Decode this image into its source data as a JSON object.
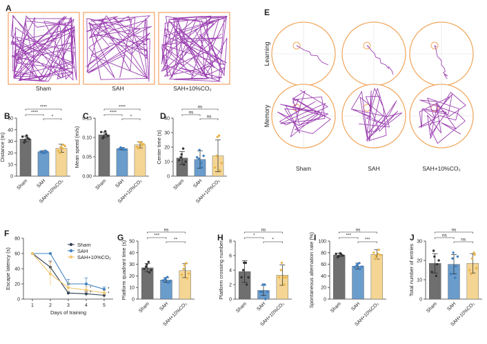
{
  "colors": {
    "sham": "#6f6f6f",
    "sah": "#6a9ccc",
    "co2": "#f4d594",
    "track": "#9a3fb0",
    "pool": "#f0a860",
    "box": "#f2a060",
    "axis": "#333333"
  },
  "panels": {
    "a": "A",
    "b": "B",
    "c": "C",
    "d": "D",
    "e": "E",
    "f": "F",
    "g": "G",
    "h": "H",
    "i": "I",
    "j": "J"
  },
  "open_field": {
    "labels": [
      "Sham",
      "SAH",
      "SAH+10%CO₂"
    ]
  },
  "water_maze": {
    "row_learning": "Learning",
    "row_memory": "Memory",
    "labels": [
      "Sham",
      "SAH",
      "SAH+10%CO₂"
    ]
  },
  "chart_data": [
    {
      "id": "B",
      "type": "bar",
      "categories": [
        "Sham",
        "SAH",
        "SAH+10%CO₂"
      ],
      "values": [
        32,
        21,
        24
      ],
      "errors": [
        2.5,
        1,
        3.5
      ],
      "ylabel": "Distance (m)",
      "ylim": [
        0,
        50
      ],
      "yticks": [
        "0",
        "10",
        "20",
        "30",
        "40",
        "50"
      ],
      "points": [
        [
          34,
          31,
          33,
          29,
          35,
          32
        ],
        [
          21,
          20,
          22,
          21,
          20,
          21
        ],
        [
          22,
          25,
          27,
          20,
          24,
          26
        ]
      ],
      "sig": [
        {
          "from": 0,
          "to": 2,
          "label": "****"
        },
        {
          "from": 0,
          "to": 1,
          "label": "****"
        },
        {
          "from": 1,
          "to": 2,
          "label": "*"
        }
      ]
    },
    {
      "id": "C",
      "type": "bar",
      "categories": [
        "Sham",
        "SAH",
        "SAH+10%CO₂"
      ],
      "values": [
        0.107,
        0.071,
        0.081
      ],
      "errors": [
        0.007,
        0.003,
        0.008
      ],
      "ylabel": "Mean speed (m/s)",
      "ylim": [
        0,
        0.15
      ],
      "yticks": [
        "0.00",
        "0.05",
        "0.10",
        "0.15"
      ],
      "points": [
        [
          0.114,
          0.102,
          0.109,
          0.098,
          0.116,
          0.104
        ],
        [
          0.07,
          0.072,
          0.068,
          0.074,
          0.071,
          0.069
        ],
        [
          0.076,
          0.088,
          0.08,
          0.072,
          0.086,
          0.083
        ]
      ],
      "sig": [
        {
          "from": 0,
          "to": 2,
          "label": "****"
        },
        {
          "from": 0,
          "to": 1,
          "label": "****"
        },
        {
          "from": 1,
          "to": 2,
          "label": "*"
        }
      ]
    },
    {
      "id": "D",
      "type": "bar",
      "categories": [
        "Sham",
        "SAH",
        "SAH+10%CO₂"
      ],
      "values": [
        12.5,
        11.5,
        14
      ],
      "errors": [
        4.5,
        6,
        11
      ],
      "ylabel": "Center time (s)",
      "ylim": [
        0,
        40
      ],
      "yticks": [
        "0",
        "10",
        "20",
        "30",
        "40"
      ],
      "points": [
        [
          11,
          15,
          8,
          13,
          19,
          10
        ],
        [
          13,
          18,
          6,
          12,
          9,
          14
        ],
        [
          6,
          27,
          4,
          14,
          28,
          9
        ]
      ],
      "sig": [
        {
          "from": 0,
          "to": 2,
          "label": "ns"
        },
        {
          "from": 0,
          "to": 1,
          "label": "ns"
        },
        {
          "from": 1,
          "to": 2,
          "label": "ns"
        }
      ]
    },
    {
      "id": "F",
      "type": "line",
      "x": [
        1,
        2,
        3,
        4,
        5
      ],
      "xlabel": "Days of training",
      "ylabel": "Escape latency (s)",
      "ylim": [
        0,
        80
      ],
      "yticks": [
        "0",
        "20",
        "40",
        "60",
        "80"
      ],
      "xticks": [
        "1",
        "2",
        "3",
        "4",
        "5"
      ],
      "series": [
        {
          "name": "Sham",
          "values": [
            60,
            42,
            8,
            7,
            5
          ],
          "errors": [
            0,
            8,
            2,
            3,
            3
          ]
        },
        {
          "name": "SAH",
          "values": [
            60,
            60,
            20,
            20,
            13
          ],
          "errors": [
            0,
            0,
            6,
            8,
            3
          ]
        },
        {
          "name": "SAH+10%CO₂",
          "values": [
            60,
            33,
            15,
            12,
            8
          ],
          "errors": [
            0,
            15,
            6,
            4,
            3
          ]
        }
      ],
      "annotations": [
        "*",
        "*",
        "*",
        "*"
      ]
    },
    {
      "id": "G",
      "type": "bar",
      "categories": [
        "Sham",
        "SAH",
        "SAH+10%CO₂"
      ],
      "values": [
        27,
        16.5,
        24.5
      ],
      "errors": [
        3.5,
        2,
        6
      ],
      "ylabel": "Platform quadrant time (s)",
      "ylim": [
        0,
        50
      ],
      "yticks": [
        "0",
        "10",
        "20",
        "30",
        "40",
        "50"
      ],
      "points": [
        [
          26,
          30,
          23,
          28,
          32,
          25
        ],
        [
          16,
          18,
          14,
          17,
          19,
          15
        ],
        [
          21,
          29,
          18,
          26,
          31,
          22
        ]
      ],
      "sig": [
        {
          "from": 0,
          "to": 2,
          "label": "ns"
        },
        {
          "from": 0,
          "to": 1,
          "label": "***"
        },
        {
          "from": 1,
          "to": 2,
          "label": "**"
        }
      ]
    },
    {
      "id": "H",
      "type": "bar",
      "categories": [
        "Sham",
        "SAH",
        "SAH+10%CO₂"
      ],
      "values": [
        3.8,
        1.2,
        3.3
      ],
      "errors": [
        1.5,
        0.7,
        1.4
      ],
      "ylabel": "Platform crossing number",
      "ylim": [
        0,
        8
      ],
      "yticks": [
        "0",
        "2",
        "4",
        "6",
        "8"
      ],
      "points": [
        [
          3,
          5,
          2,
          4,
          5,
          3
        ],
        [
          1,
          2,
          0,
          1,
          2,
          1
        ],
        [
          3,
          5,
          2,
          4,
          3,
          3
        ]
      ],
      "sig": [
        {
          "from": 0,
          "to": 2,
          "label": "ns"
        },
        {
          "from": 0,
          "to": 1,
          "label": "*"
        },
        {
          "from": 1,
          "to": 2,
          "label": "*"
        }
      ]
    },
    {
      "id": "I",
      "type": "bar",
      "categories": [
        "Sham",
        "SAH",
        "SAH+10%CO₂"
      ],
      "values": [
        76,
        57,
        77
      ],
      "errors": [
        3,
        5,
        8
      ],
      "ylabel": "Spontaneous alternation rate (%)",
      "ylim": [
        0,
        100
      ],
      "yticks": [
        "0",
        "20",
        "40",
        "60",
        "80",
        "100"
      ],
      "points": [
        [
          78,
          74,
          77,
          72,
          79,
          75
        ],
        [
          55,
          60,
          52,
          58,
          62,
          56
        ],
        [
          80,
          70,
          85,
          74,
          78,
          76
        ]
      ],
      "sig": [
        {
          "from": 0,
          "to": 2,
          "label": "ns"
        },
        {
          "from": 0,
          "to": 1,
          "label": "***"
        },
        {
          "from": 1,
          "to": 2,
          "label": "***"
        }
      ]
    },
    {
      "id": "J",
      "type": "bar",
      "categories": [
        "Sham",
        "SAH",
        "SAH+10%CO₂"
      ],
      "values": [
        18.5,
        18,
        18.5
      ],
      "errors": [
        5,
        5,
        5
      ],
      "ylabel": "Total number of entries",
      "ylim": [
        0,
        30
      ],
      "yticks": [
        "0",
        "10",
        "20",
        "30"
      ],
      "points": [
        [
          14,
          22,
          18,
          25,
          12,
          20
        ],
        [
          13,
          24,
          17,
          21,
          11,
          22
        ],
        [
          15,
          21,
          23,
          13,
          24,
          16
        ]
      ],
      "sig": [
        {
          "from": 0,
          "to": 2,
          "label": "ns"
        },
        {
          "from": 0,
          "to": 1,
          "label": "ns"
        },
        {
          "from": 1,
          "to": 2,
          "label": "ns"
        }
      ]
    }
  ]
}
